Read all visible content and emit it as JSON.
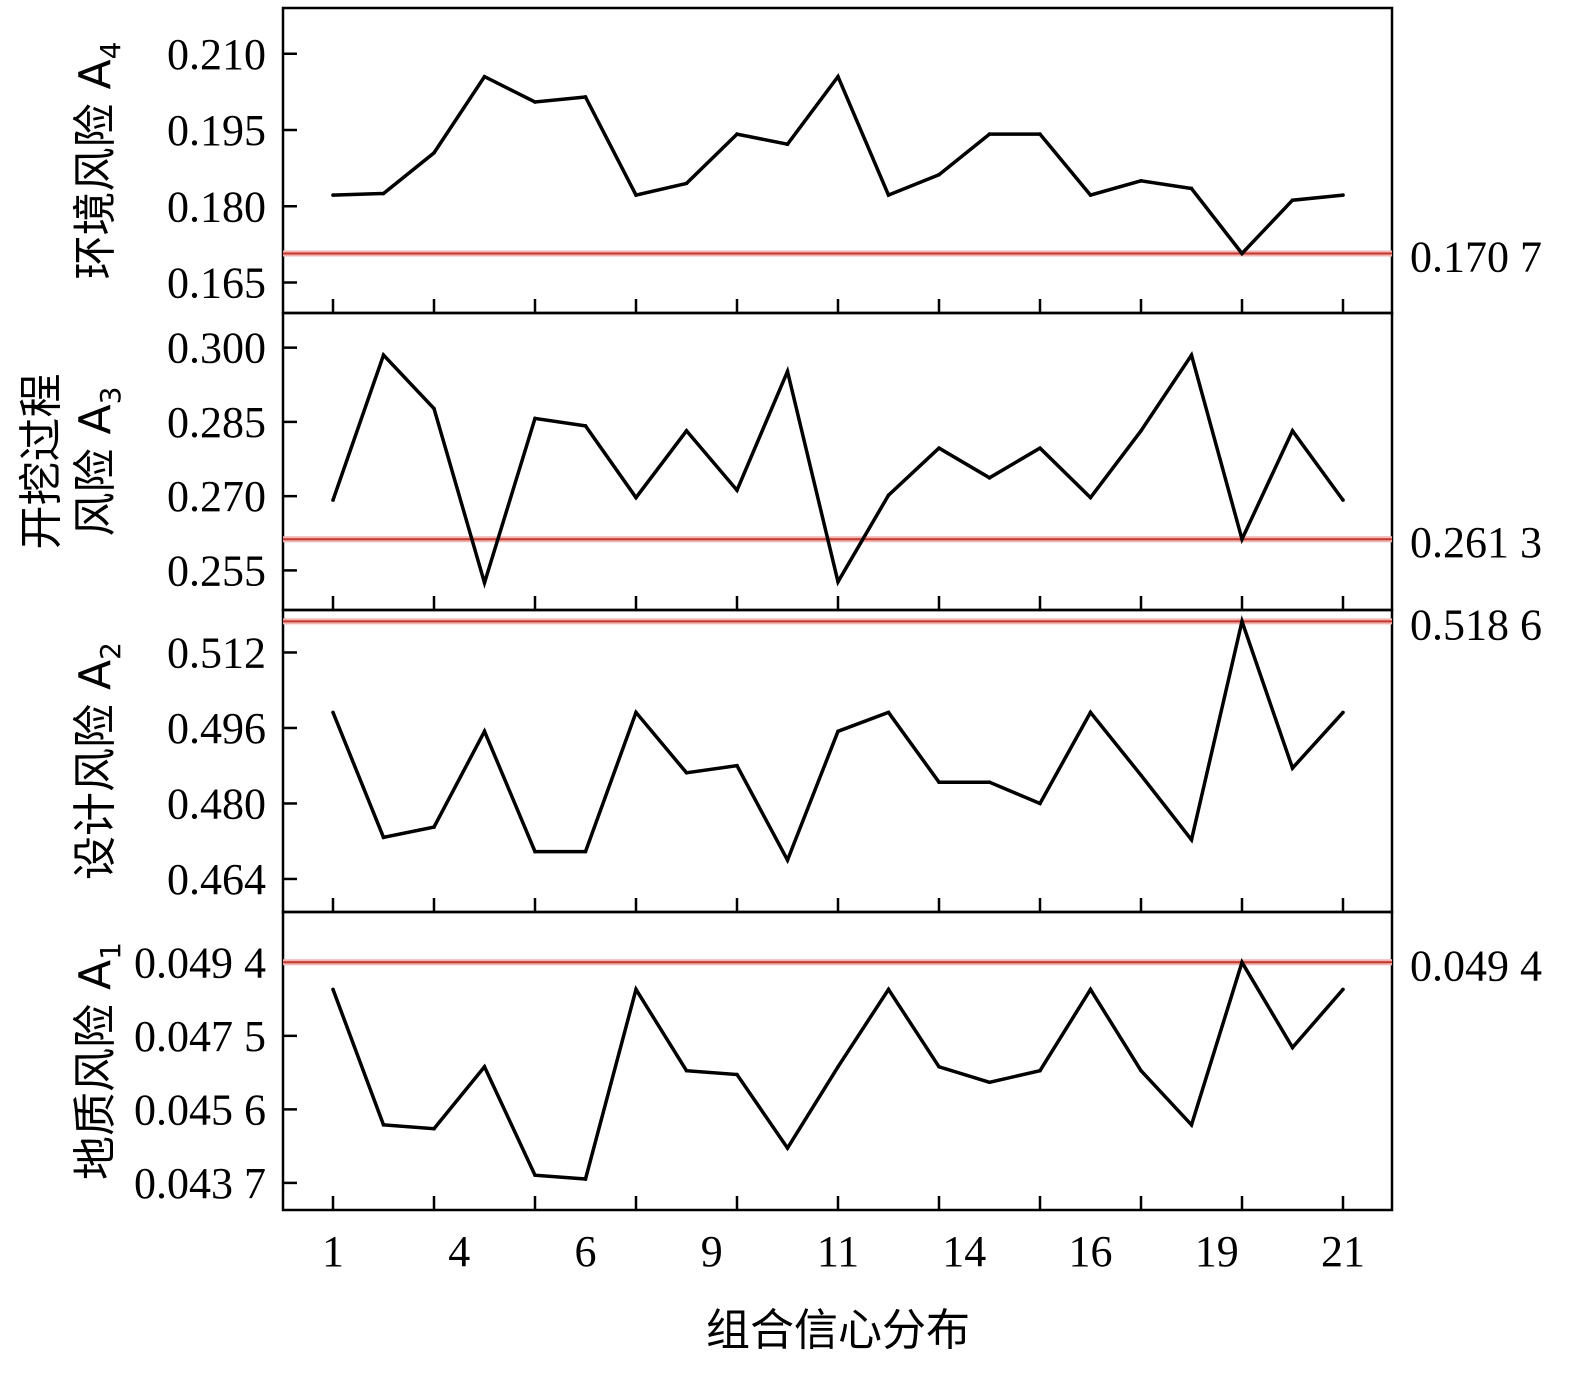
{
  "chart_data": {
    "type": "line",
    "xlabel": "组合信心分布",
    "x": [
      1,
      2,
      3,
      4,
      5,
      6,
      7,
      8,
      9,
      10,
      11,
      12,
      13,
      14,
      15,
      16,
      17,
      18,
      19,
      20,
      21
    ],
    "x_tick_labels": [
      "1",
      "4",
      "6",
      "9",
      "11",
      "14",
      "16",
      "19",
      "21"
    ],
    "line_color": "#000000",
    "ref_line_color": "#c0392b",
    "panels": [
      {
        "ylabel_main": "环境风险 A",
        "ylabel_sub": "4",
        "ylim": [
          0.159,
          0.219
        ],
        "yticks": [
          0.21,
          0.195,
          0.18,
          0.165
        ],
        "ytick_labels": [
          "0.210",
          "0.195",
          "0.180",
          "0.165"
        ],
        "ref_value": 0.1707,
        "ref_label": "0.170 7",
        "values": [
          0.1822,
          0.1825,
          0.1905,
          0.2055,
          0.2005,
          0.2015,
          0.1822,
          0.1845,
          0.1942,
          0.1922,
          0.2055,
          0.1822,
          0.1862,
          0.1942,
          0.1942,
          0.1822,
          0.185,
          0.1835,
          0.1707,
          0.1812,
          0.1822
        ]
      },
      {
        "ylabel_main": "开挖过程",
        "ylabel_main2": "风险 A",
        "ylabel_sub": "3",
        "ylim": [
          0.247,
          0.307
        ],
        "yticks": [
          0.3,
          0.285,
          0.27,
          0.255
        ],
        "ytick_labels": [
          "0.300",
          "0.285",
          "0.270",
          "0.255"
        ],
        "ref_value": 0.2613,
        "ref_label": "0.261 3",
        "values": [
          0.2692,
          0.2985,
          0.2877,
          0.2525,
          0.2857,
          0.2842,
          0.2697,
          0.2832,
          0.2712,
          0.2952,
          0.2527,
          0.2702,
          0.2797,
          0.2737,
          0.2797,
          0.2697,
          0.2832,
          0.2985,
          0.2613,
          0.2832,
          0.2692
        ]
      },
      {
        "ylabel_main": "设计风险 A",
        "ylabel_sub": "2",
        "ylim": [
          0.457,
          0.521
        ],
        "yticks": [
          0.512,
          0.496,
          0.48,
          0.464
        ],
        "ytick_labels": [
          "0.512",
          "0.496",
          "0.480",
          "0.464"
        ],
        "ref_value": 0.5186,
        "ref_label": "0.518 6",
        "values": [
          0.4993,
          0.4728,
          0.475,
          0.4953,
          0.4698,
          0.4698,
          0.4993,
          0.4865,
          0.488,
          0.468,
          0.4953,
          0.4993,
          0.4845,
          0.4845,
          0.48,
          0.4993,
          0.486,
          0.4723,
          0.5186,
          0.4875,
          0.4993
        ]
      },
      {
        "ylabel_main": "地质风险 A",
        "ylabel_sub": "1",
        "ylim": [
          0.043,
          0.0507
        ],
        "yticks": [
          0.0494,
          0.0475,
          0.0456,
          0.0437
        ],
        "ytick_labels": [
          "0.049 4",
          "0.047 5",
          "0.045 6",
          "0.043 7"
        ],
        "ref_value": 0.0494,
        "ref_label": "0.049 4",
        "values": [
          0.0487,
          0.0452,
          0.0451,
          0.0467,
          0.0439,
          0.0438,
          0.0487,
          0.0466,
          0.0465,
          0.0446,
          0.0467,
          0.0487,
          0.0467,
          0.0463,
          0.0466,
          0.0487,
          0.0466,
          0.0452,
          0.0494,
          0.0472,
          0.0487
        ]
      }
    ]
  }
}
